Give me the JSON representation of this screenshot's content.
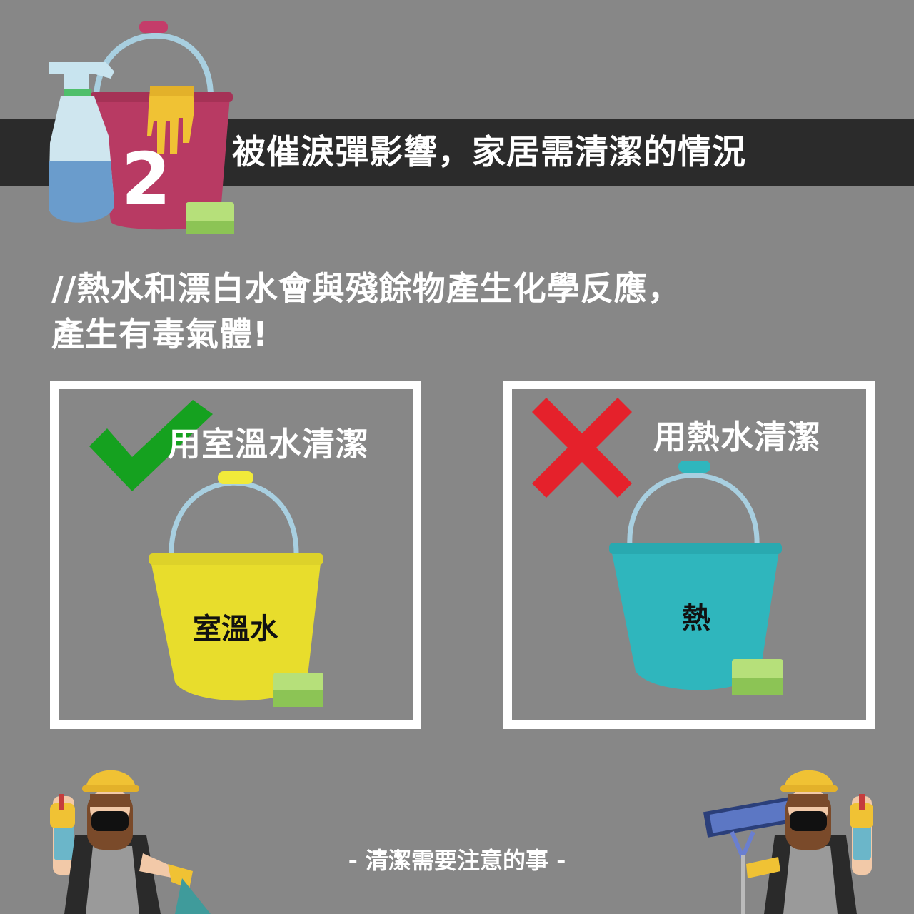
{
  "header": {
    "step_number": "2",
    "title": "被催淚彈影響，家居需清潔的情況"
  },
  "subtitle": {
    "line1": "//熱水和漂白水會與殘餘物產生化學反應，",
    "line2": "產生有毒氣體!"
  },
  "panels": {
    "correct": {
      "label": "用室溫水清潔",
      "bucket_text": "室溫水",
      "icon": "check-icon",
      "bucket_color": "#e8dd2c"
    },
    "wrong": {
      "label": "用熱水清潔",
      "bucket_text": "熱",
      "icon": "cross-icon",
      "bucket_color": "#2fb6bd"
    }
  },
  "footer": {
    "text": "- 清潔需要注意的事 -"
  },
  "colors": {
    "background": "#878787",
    "header_band": "#2b2b2b",
    "check_green": "#15a11f",
    "cross_red": "#e5212b",
    "sponge_green": "#b6e07a"
  }
}
